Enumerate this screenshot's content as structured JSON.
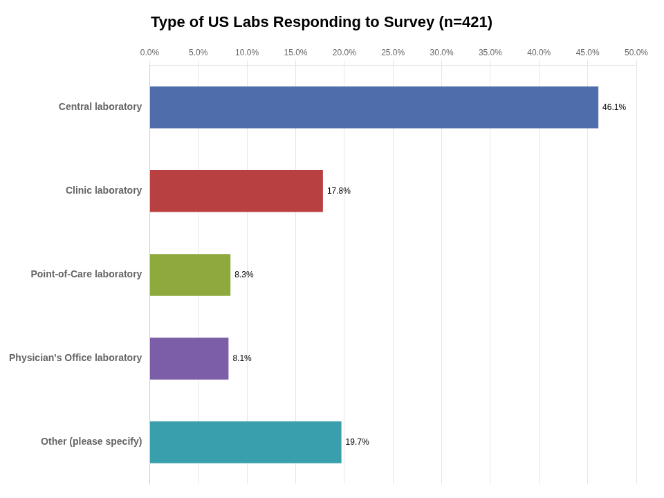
{
  "chart_data": {
    "type": "bar",
    "orientation": "horizontal",
    "title": "Type of US Labs Responding to Survey (n=421)",
    "categories": [
      "Other (please specify)",
      "Physician's Office laboratory",
      "Point-of-Care laboratory",
      "Clinic laboratory",
      "Central laboratory"
    ],
    "values": [
      19.7,
      8.1,
      8.3,
      17.8,
      46.1
    ],
    "value_labels": [
      "19.7%",
      "8.1%",
      "8.3%",
      "17.8%",
      "46.1%"
    ],
    "data_labels": true,
    "colors": [
      "#3a9fad",
      "#7b5ea7",
      "#8faa3c",
      "#b84040",
      "#4f6dab"
    ],
    "xlim": [
      0,
      50
    ],
    "xticks": [
      {
        "value": 0,
        "label": "0.0%"
      },
      {
        "value": 5,
        "label": "5.0%"
      },
      {
        "value": 10,
        "label": "10.0%"
      },
      {
        "value": 15,
        "label": "15.0%"
      },
      {
        "value": 20,
        "label": "20.0%"
      },
      {
        "value": 25,
        "label": "25.0%"
      },
      {
        "value": 30,
        "label": "30.0%"
      },
      {
        "value": 35,
        "label": "35.0%"
      },
      {
        "value": 40,
        "label": "40.0%"
      },
      {
        "value": 45,
        "label": "45.0%"
      },
      {
        "value": 50,
        "label": "50.0%"
      }
    ],
    "grid": true
  }
}
